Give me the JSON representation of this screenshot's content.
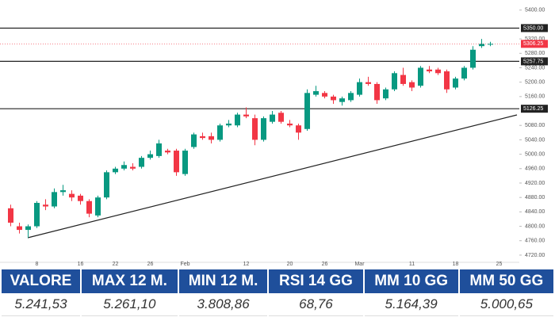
{
  "chart_data": {
    "type": "candlestick",
    "categories": [
      null,
      null,
      null,
      "8",
      null,
      null,
      null,
      null,
      "16",
      null,
      null,
      null,
      "22",
      null,
      null,
      null,
      "26",
      null,
      null,
      null,
      "Feb",
      null,
      null,
      null,
      null,
      null,
      null,
      "12",
      null,
      null,
      null,
      null,
      "20",
      null,
      null,
      null,
      "26",
      null,
      null,
      null,
      "Mar",
      null,
      null,
      null,
      null,
      null,
      "11",
      null,
      null,
      null,
      null,
      "18",
      null,
      null,
      null,
      null,
      "25"
    ],
    "open": [
      4850,
      4800,
      4790,
      4800,
      4860,
      4855,
      4895,
      4890,
      4885,
      4870,
      4830,
      4880,
      4950,
      4960,
      4965,
      4965,
      4990,
      4995,
      5010,
      5010,
      4945,
      5020,
      5050,
      5050,
      5040,
      5080,
      5080,
      5110,
      5100,
      5040,
      5090,
      5115,
      5085,
      5080,
      5070,
      5165,
      5170,
      5160,
      5145,
      5150,
      5165,
      5200,
      5195,
      5155,
      5180,
      5220,
      5200,
      5190,
      5235,
      5235,
      5230,
      5185,
      5210,
      5240,
      5300,
      5306.25,
      null
    ],
    "high": [
      4860,
      4810,
      4805,
      4870,
      4875,
      4905,
      4915,
      4900,
      4890,
      4875,
      4885,
      4955,
      4965,
      4980,
      4975,
      4995,
      5010,
      5040,
      5015,
      5015,
      5015,
      5060,
      5060,
      5060,
      5085,
      5095,
      5115,
      5130,
      5110,
      5105,
      5120,
      5120,
      5095,
      5085,
      5180,
      5190,
      5175,
      5165,
      5160,
      5175,
      5210,
      5215,
      5200,
      5185,
      5230,
      5240,
      5205,
      5245,
      5245,
      5240,
      5235,
      5215,
      5245,
      5300,
      5320,
      5312,
      null
    ],
    "low": [
      4800,
      4780,
      4768,
      4795,
      4845,
      4850,
      4885,
      4870,
      4860,
      4825,
      4825,
      4875,
      4945,
      4955,
      4955,
      4960,
      4985,
      4990,
      5000,
      4940,
      4940,
      5015,
      5040,
      5030,
      5035,
      5075,
      5075,
      5100,
      5025,
      5035,
      5085,
      5085,
      5075,
      5040,
      5065,
      5160,
      5155,
      5140,
      5135,
      5145,
      5160,
      5190,
      5140,
      5150,
      5175,
      5190,
      5175,
      5185,
      5225,
      5220,
      5170,
      5180,
      5205,
      5235,
      5295,
      5300,
      null
    ],
    "close": [
      4810,
      4790,
      4800,
      4865,
      4855,
      4895,
      4900,
      4880,
      4870,
      4835,
      4880,
      4950,
      4960,
      4970,
      4960,
      4990,
      5000,
      5030,
      5005,
      4950,
      5010,
      5055,
      5045,
      5040,
      5080,
      5085,
      5110,
      5105,
      5040,
      5100,
      5110,
      5090,
      5080,
      5060,
      5170,
      5175,
      5160,
      5150,
      5155,
      5170,
      5200,
      5195,
      5150,
      5180,
      5225,
      5195,
      5185,
      5240,
      5230,
      5225,
      5180,
      5210,
      5240,
      5290,
      5306,
      5306.25,
      null
    ],
    "up_color": "#089981",
    "down_color": "#f23645",
    "ylim": [
      4700,
      5428
    ],
    "yticks": [
      {
        "value": 5400,
        "label": "5400.00"
      },
      {
        "value": 5320,
        "label": "5320.00"
      },
      {
        "value": 5280,
        "label": "5280.00"
      },
      {
        "value": 5240,
        "label": "5240.00"
      },
      {
        "value": 5200,
        "label": "5200.00"
      },
      {
        "value": 5160,
        "label": "5160.00"
      },
      {
        "value": 5080,
        "label": "5080.00"
      },
      {
        "value": 5040,
        "label": "5040.00"
      },
      {
        "value": 5000,
        "label": "5000.00"
      },
      {
        "value": 4960,
        "label": "4960.00"
      },
      {
        "value": 4920,
        "label": "4920.00"
      },
      {
        "value": 4880,
        "label": "4880.00"
      },
      {
        "value": 4840,
        "label": "4840.00"
      },
      {
        "value": 4800,
        "label": "4800.00"
      },
      {
        "value": 4760,
        "label": "4760.00"
      },
      {
        "value": 4720,
        "label": "4720.00"
      }
    ],
    "levels": [
      {
        "value": 5350,
        "label": "5350.00"
      },
      {
        "value": 5257.75,
        "label": "5257.75"
      },
      {
        "value": 5126.25,
        "label": "5126.25"
      }
    ],
    "price_tag": {
      "value": 5306.25,
      "label": "5306.25",
      "color": "#f23645"
    }
  },
  "table": {
    "headers": [
      "VALORE",
      "MAX 12 M.",
      "MIN 12 M.",
      "RSI 14 GG",
      "MM 10 GG",
      "MM 50 GG"
    ],
    "rows": [
      [
        "5.241,53",
        "5.261,10",
        "3.808,86",
        "68,76",
        "5.164,39",
        "5.000,65"
      ]
    ]
  }
}
